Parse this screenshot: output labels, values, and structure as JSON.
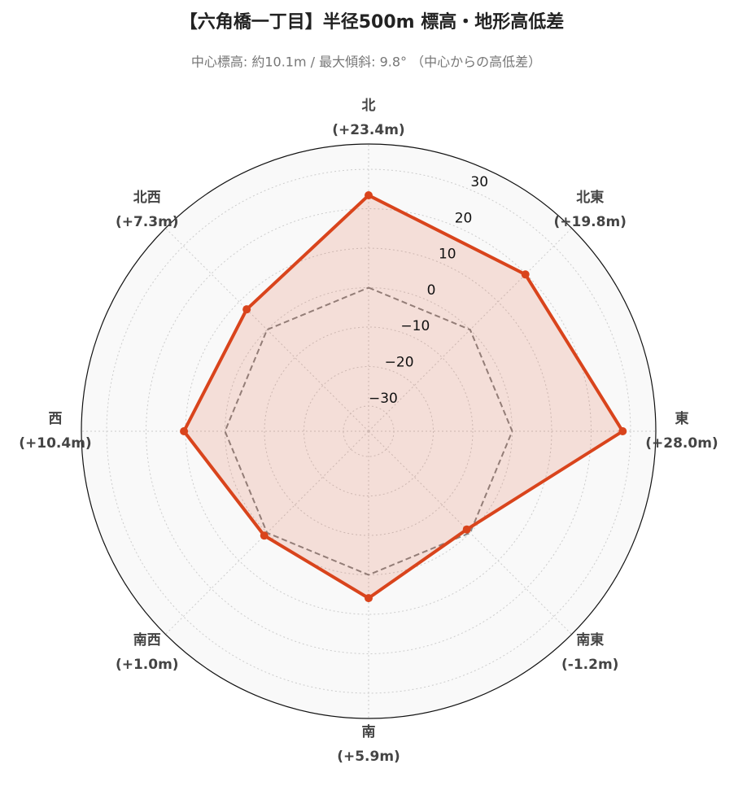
{
  "chart_data": {
    "type": "radar",
    "title": "【六角橋一丁目】半径500m 標高・地形高低差",
    "subtitle": "中心標高: 約10.1m / 最大傾斜: 9.8° （中心からの高低差）",
    "categories": [
      "北",
      "北東",
      "東",
      "南東",
      "南",
      "南西",
      "西",
      "北西"
    ],
    "values": [
      23.4,
      19.8,
      28.0,
      -1.2,
      5.9,
      1.0,
      10.4,
      7.3
    ],
    "value_labels": [
      "(+23.4m)",
      "(+19.8m)",
      "(+28.0m)",
      "(-1.2m)",
      "(+5.9m)",
      "(+1.0m)",
      "(+10.4m)",
      "(+7.3m)"
    ],
    "color": "#d9441c",
    "reference_value": 0,
    "reference_color": "#888888",
    "ylim": [
      -36.4,
      36.4
    ],
    "yticks": [
      {
        "value": -30,
        "label": "−30"
      },
      {
        "value": -20,
        "label": "−20"
      },
      {
        "value": -10,
        "label": "−10"
      },
      0,
      10,
      20,
      30
    ],
    "grid": true
  }
}
